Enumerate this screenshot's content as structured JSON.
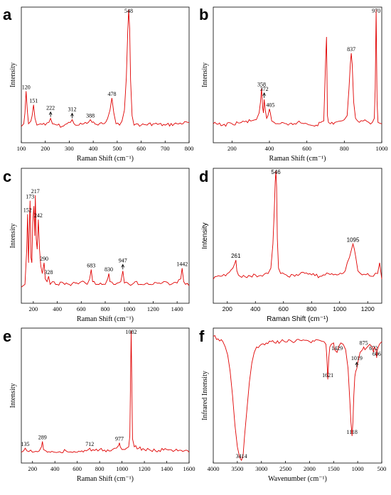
{
  "chart_data": [
    {
      "panel": "a",
      "type": "line",
      "xlabel": "Raman Shift (cm⁻¹)",
      "ylabel": "Intensity",
      "xlim": [
        100,
        800
      ],
      "ylim": [
        0,
        100
      ],
      "xticks": [
        "100",
        "200",
        "300",
        "400",
        "500",
        "600",
        "700",
        "800"
      ],
      "series": [
        {
          "color": "#e00000",
          "x": [
            100,
            110,
            115,
            120,
            125,
            130,
            140,
            145,
            151,
            157,
            165,
            180,
            200,
            215,
            222,
            230,
            250,
            270,
            290,
            305,
            312,
            320,
            340,
            360,
            380,
            388,
            395,
            420,
            440,
            460,
            470,
            478,
            486,
            495,
            510,
            520,
            530,
            538,
            544,
            548,
            552,
            556,
            562,
            570,
            580,
            600,
            650,
            700,
            750,
            800
          ],
          "y": [
            12,
            14,
            22,
            38,
            24,
            14,
            16,
            20,
            28,
            18,
            13,
            14,
            13,
            15,
            18,
            14,
            13,
            12,
            14,
            15,
            17,
            14,
            13,
            14,
            15,
            17,
            15,
            13,
            14,
            18,
            24,
            33,
            22,
            14,
            13,
            16,
            24,
            48,
            82,
            98,
            84,
            46,
            20,
            13,
            14,
            13,
            14,
            13,
            14,
            15
          ]
        }
      ],
      "annotations": [
        {
          "text": "120",
          "x": 120,
          "y": 38
        },
        {
          "text": "151",
          "x": 151,
          "y": 28
        },
        {
          "text": "222",
          "x": 222,
          "y": 18,
          "arrow": true
        },
        {
          "text": "312",
          "x": 312,
          "y": 17,
          "arrow": true
        },
        {
          "text": "388",
          "x": 388,
          "y": 17
        },
        {
          "text": "478",
          "x": 478,
          "y": 33
        },
        {
          "text": "548",
          "x": 548,
          "y": 98
        }
      ]
    },
    {
      "panel": "b",
      "type": "line",
      "xlabel": "Raman Shift (cm⁻¹)",
      "ylabel": "Intensity",
      "xlim": [
        100,
        1000
      ],
      "ylim": [
        0,
        100
      ],
      "xticks": [
        "200",
        "400",
        "600",
        "800",
        "1000"
      ],
      "series": [
        {
          "color": "#e00000",
          "x": [
            100,
            150,
            200,
            250,
            300,
            330,
            345,
            352,
            358,
            364,
            368,
            372,
            378,
            385,
            392,
            400,
            405,
            412,
            425,
            450,
            500,
            550,
            600,
            650,
            690,
            700,
            705,
            710,
            715,
            725,
            750,
            780,
            800,
            815,
            825,
            832,
            837,
            842,
            850,
            860,
            880,
            900,
            930,
            950,
            960,
            965,
            970,
            975,
            980,
            1000
          ],
          "y": [
            14,
            13,
            14,
            15,
            16,
            17,
            22,
            30,
            40,
            26,
            22,
            32,
            24,
            18,
            20,
            25,
            22,
            16,
            15,
            14,
            13,
            15,
            14,
            13,
            16,
            60,
            78,
            20,
            15,
            14,
            15,
            16,
            17,
            20,
            40,
            58,
            66,
            58,
            30,
            18,
            15,
            16,
            15,
            15,
            18,
            40,
            98,
            30,
            15,
            14
          ]
        }
      ],
      "annotations": [
        {
          "text": "358",
          "x": 358,
          "y": 40
        },
        {
          "text": "372",
          "x": 372,
          "y": 32,
          "arrow": true
        },
        {
          "text": "405",
          "x": 405,
          "y": 25
        },
        {
          "text": "837",
          "x": 837,
          "y": 66
        },
        {
          "text": "970",
          "x": 970,
          "y": 98
        }
      ]
    },
    {
      "panel": "c",
      "type": "line",
      "xlabel": "Raman Shift (cm⁻¹)",
      "ylabel": "Intensity",
      "xlim": [
        100,
        1500
      ],
      "ylim": [
        0,
        100
      ],
      "xticks": [
        "200",
        "400",
        "600",
        "800",
        "1000",
        "1200",
        "1400"
      ],
      "series": [
        {
          "color": "#e00000",
          "x": [
            100,
            130,
            145,
            152,
            160,
            166,
            173,
            180,
            188,
            195,
            205,
            212,
            217,
            224,
            232,
            242,
            252,
            262,
            275,
            290,
            300,
            315,
            328,
            340,
            360,
            400,
            450,
            500,
            550,
            600,
            650,
            670,
            683,
            695,
            720,
            760,
            800,
            820,
            830,
            840,
            870,
            900,
            930,
            947,
            960,
            1000,
            1050,
            1100,
            1150,
            1200,
            1250,
            1300,
            1350,
            1400,
            1430,
            1442,
            1455,
            1470,
            1500
          ],
          "y": [
            12,
            14,
            40,
            66,
            30,
            52,
            76,
            34,
            30,
            60,
            72,
            50,
            80,
            48,
            40,
            62,
            40,
            28,
            22,
            30,
            18,
            16,
            20,
            14,
            16,
            14,
            15,
            14,
            15,
            16,
            14,
            18,
            25,
            16,
            14,
            15,
            14,
            18,
            22,
            16,
            14,
            15,
            16,
            24,
            15,
            14,
            16,
            14,
            15,
            14,
            15,
            16,
            14,
            15,
            18,
            26,
            16,
            14,
            13
          ]
        }
      ],
      "annotations": [
        {
          "text": "152",
          "x": 152,
          "y": 66
        },
        {
          "text": "173",
          "x": 173,
          "y": 76
        },
        {
          "text": "217",
          "x": 217,
          "y": 80
        },
        {
          "text": "242",
          "x": 242,
          "y": 62
        },
        {
          "text": "290",
          "x": 290,
          "y": 30
        },
        {
          "text": "328",
          "x": 328,
          "y": 20
        },
        {
          "text": "683",
          "x": 683,
          "y": 25
        },
        {
          "text": "830",
          "x": 830,
          "y": 22
        },
        {
          "text": "947",
          "x": 947,
          "y": 24,
          "arrow": true
        },
        {
          "text": "1442",
          "x": 1442,
          "y": 26
        }
      ]
    },
    {
      "panel": "d",
      "type": "line",
      "xlabel": "Raman Shift (cm⁻¹)",
      "ylabel": "Intensity",
      "xlim": [
        100,
        1300
      ],
      "ylim": [
        0,
        100
      ],
      "xticks": [
        "200",
        "400",
        "600",
        "800",
        "1000",
        "1200"
      ],
      "series": [
        {
          "color": "#e00000",
          "x": [
            100,
            150,
            200,
            240,
            255,
            261,
            268,
            290,
            340,
            400,
            450,
            490,
            510,
            525,
            535,
            541,
            546,
            551,
            556,
            565,
            580,
            620,
            680,
            740,
            800,
            860,
            920,
            980,
            1040,
            1070,
            1085,
            1095,
            1105,
            1115,
            1130,
            1160,
            1200,
            1240,
            1270,
            1285,
            1300
          ],
          "y": [
            18,
            20,
            22,
            26,
            30,
            32,
            24,
            20,
            19,
            21,
            20,
            22,
            26,
            44,
            70,
            90,
            98,
            86,
            48,
            26,
            22,
            21,
            20,
            23,
            21,
            20,
            22,
            21,
            24,
            34,
            40,
            44,
            40,
            34,
            24,
            21,
            22,
            20,
            22,
            30,
            18
          ]
        }
      ],
      "annotations": [
        {
          "text": "261",
          "x": 261,
          "y": 32
        },
        {
          "text": "546",
          "x": 546,
          "y": 98
        },
        {
          "text": "1095",
          "x": 1095,
          "y": 44
        }
      ]
    },
    {
      "panel": "e",
      "type": "line",
      "xlabel": "Raman Shift (cm⁻¹)",
      "ylabel": "Intensity",
      "xlim": [
        100,
        1600
      ],
      "ylim": [
        0,
        100
      ],
      "xticks": [
        "200",
        "400",
        "600",
        "800",
        "1000",
        "1200",
        "1400",
        "1600"
      ],
      "series": [
        {
          "color": "#e00000",
          "x": [
            100,
            120,
            135,
            150,
            200,
            260,
            280,
            289,
            298,
            320,
            400,
            500,
            600,
            680,
            700,
            712,
            725,
            800,
            900,
            950,
            970,
            977,
            985,
            1000,
            1040,
            1060,
            1070,
            1076,
            1082,
            1088,
            1094,
            1110,
            1200,
            1300,
            1400,
            1500,
            1600
          ],
          "y": [
            8,
            9,
            11,
            9,
            8,
            9,
            12,
            16,
            10,
            9,
            8,
            9,
            8,
            9,
            10,
            11,
            9,
            10,
            9,
            11,
            13,
            15,
            12,
            10,
            11,
            12,
            20,
            60,
            98,
            60,
            18,
            12,
            10,
            9,
            10,
            9,
            8
          ]
        }
      ],
      "annotations": [
        {
          "text": "135",
          "x": 135,
          "y": 11
        },
        {
          "text": "289",
          "x": 289,
          "y": 16
        },
        {
          "text": "712",
          "x": 712,
          "y": 11
        },
        {
          "text": "977",
          "x": 977,
          "y": 15
        },
        {
          "text": "1082",
          "x": 1082,
          "y": 98
        }
      ]
    },
    {
      "panel": "f",
      "type": "line",
      "xlabel": "Wavenumber (cm⁻¹)",
      "ylabel": "Infrared Intensity",
      "xlim": [
        4000,
        500
      ],
      "xreversed": true,
      "ylim": [
        0,
        100
      ],
      "xticks": [
        "4000",
        "3500",
        "3000",
        "2500",
        "2000",
        "1500",
        "1000",
        "500"
      ],
      "series": [
        {
          "color": "#e00000",
          "x": [
            4000,
            3900,
            3800,
            3750,
            3700,
            3650,
            3600,
            3550,
            3500,
            3450,
            3414,
            3380,
            3350,
            3300,
            3250,
            3200,
            3150,
            3100,
            3000,
            2900,
            2800,
            2600,
            2400,
            2300,
            2200,
            2000,
            1800,
            1700,
            1660,
            1640,
            1621,
            1600,
            1580,
            1550,
            1500,
            1480,
            1429,
            1400,
            1350,
            1300,
            1250,
            1200,
            1160,
            1140,
            1118,
            1100,
            1080,
            1060,
            1040,
            1019,
            1000,
            950,
            900,
            875,
            850,
            800,
            750,
            700,
            672,
            650,
            620,
            606,
            590,
            550,
            500
          ],
          "y": [
            94,
            92,
            90,
            86,
            80,
            68,
            50,
            28,
            12,
            4,
            2,
            6,
            20,
            40,
            60,
            74,
            82,
            86,
            88,
            89,
            90,
            90,
            91,
            90,
            91,
            90,
            91,
            90,
            88,
            78,
            62,
            78,
            86,
            88,
            89,
            84,
            82,
            86,
            89,
            88,
            84,
            70,
            44,
            30,
            20,
            30,
            50,
            64,
            68,
            70,
            74,
            82,
            84,
            86,
            84,
            86,
            88,
            86,
            82,
            86,
            84,
            78,
            84,
            88,
            90
          ]
        }
      ],
      "annotations": [
        {
          "text": "3414",
          "x": 3414,
          "y": 2
        },
        {
          "text": "1621",
          "x": 1621,
          "y": 62
        },
        {
          "text": "1429",
          "x": 1429,
          "y": 82
        },
        {
          "text": "1118",
          "x": 1118,
          "y": 20
        },
        {
          "text": "1019",
          "x": 1019,
          "y": 70,
          "arrow": true
        },
        {
          "text": "875",
          "x": 875,
          "y": 86
        },
        {
          "text": "672",
          "x": 672,
          "y": 82
        },
        {
          "text": "606",
          "x": 606,
          "y": 78
        }
      ]
    }
  ]
}
